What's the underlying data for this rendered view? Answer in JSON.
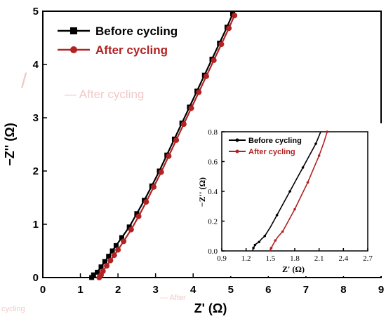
{
  "chart_data": [
    {
      "type": "line",
      "xlabel": "Z' (Ω)",
      "ylabel": "−Z'' (Ω)",
      "xlim": [
        0,
        9
      ],
      "ylim": [
        0,
        5
      ],
      "xticks": [
        "0",
        "1",
        "2",
        "3",
        "4",
        "5",
        "6",
        "7",
        "8",
        "9"
      ],
      "yticks": [
        "0",
        "1",
        "2",
        "3",
        "4",
        "5"
      ],
      "legend_position": "top-left",
      "series": [
        {
          "name": "Before cycling",
          "color": "#000000",
          "marker": "square",
          "x": [
            1.3,
            1.35,
            1.45,
            1.55,
            1.65,
            1.75,
            1.85,
            1.95,
            2.1,
            2.3,
            2.5,
            2.7,
            2.9,
            3.1,
            3.3,
            3.5,
            3.7,
            3.9,
            4.1,
            4.3,
            4.5,
            4.7,
            4.9,
            5.05
          ],
          "y": [
            0.0,
            0.05,
            0.1,
            0.2,
            0.3,
            0.4,
            0.5,
            0.6,
            0.75,
            0.95,
            1.2,
            1.45,
            1.72,
            2.0,
            2.3,
            2.6,
            2.9,
            3.2,
            3.5,
            3.8,
            4.1,
            4.4,
            4.7,
            4.95
          ]
        },
        {
          "name": "After cycling",
          "color": "#b22222",
          "marker": "circle",
          "x": [
            1.5,
            1.55,
            1.6,
            1.7,
            1.8,
            1.9,
            2.0,
            2.15,
            2.35,
            2.55,
            2.75,
            2.95,
            3.15,
            3.35,
            3.55,
            3.75,
            3.95,
            4.15,
            4.35,
            4.55,
            4.75,
            4.95,
            5.1
          ],
          "y": [
            0.0,
            0.05,
            0.12,
            0.22,
            0.32,
            0.42,
            0.52,
            0.68,
            0.9,
            1.15,
            1.42,
            1.7,
            1.98,
            2.28,
            2.58,
            2.88,
            3.18,
            3.48,
            3.78,
            4.08,
            4.38,
            4.68,
            4.92
          ]
        }
      ]
    },
    {
      "type": "line",
      "inset": true,
      "xlabel": "Z' (Ω)",
      "ylabel": "−Z'' (Ω)",
      "xlim": [
        0.9,
        2.7
      ],
      "ylim": [
        0,
        0.8
      ],
      "xticks": [
        "0.9",
        "1.2",
        "1.5",
        "1.8",
        "2.1",
        "2.4",
        "2.7"
      ],
      "yticks": [
        "0.0",
        "0.2",
        "0.4",
        "0.6",
        "0.8"
      ],
      "legend_position": "top-left",
      "series": [
        {
          "name": "Before cycling",
          "color": "#000000",
          "x": [
            1.28,
            1.29,
            1.3,
            1.31,
            1.33,
            1.36,
            1.39,
            1.43,
            1.5,
            1.58,
            1.66,
            1.74,
            1.82,
            1.9,
            1.98,
            2.06,
            2.12
          ],
          "y": [
            0.0,
            0.02,
            0.03,
            0.04,
            0.05,
            0.06,
            0.08,
            0.1,
            0.16,
            0.24,
            0.32,
            0.4,
            0.48,
            0.56,
            0.64,
            0.72,
            0.8
          ]
        },
        {
          "name": "After cycling",
          "color": "#b22222",
          "x": [
            1.5,
            1.51,
            1.53,
            1.56,
            1.6,
            1.65,
            1.72,
            1.8,
            1.88,
            1.96,
            2.03,
            2.1,
            2.16,
            2.2
          ],
          "y": [
            0.0,
            0.02,
            0.04,
            0.07,
            0.1,
            0.13,
            0.2,
            0.28,
            0.37,
            0.46,
            0.55,
            0.64,
            0.73,
            0.8
          ]
        }
      ]
    }
  ]
}
